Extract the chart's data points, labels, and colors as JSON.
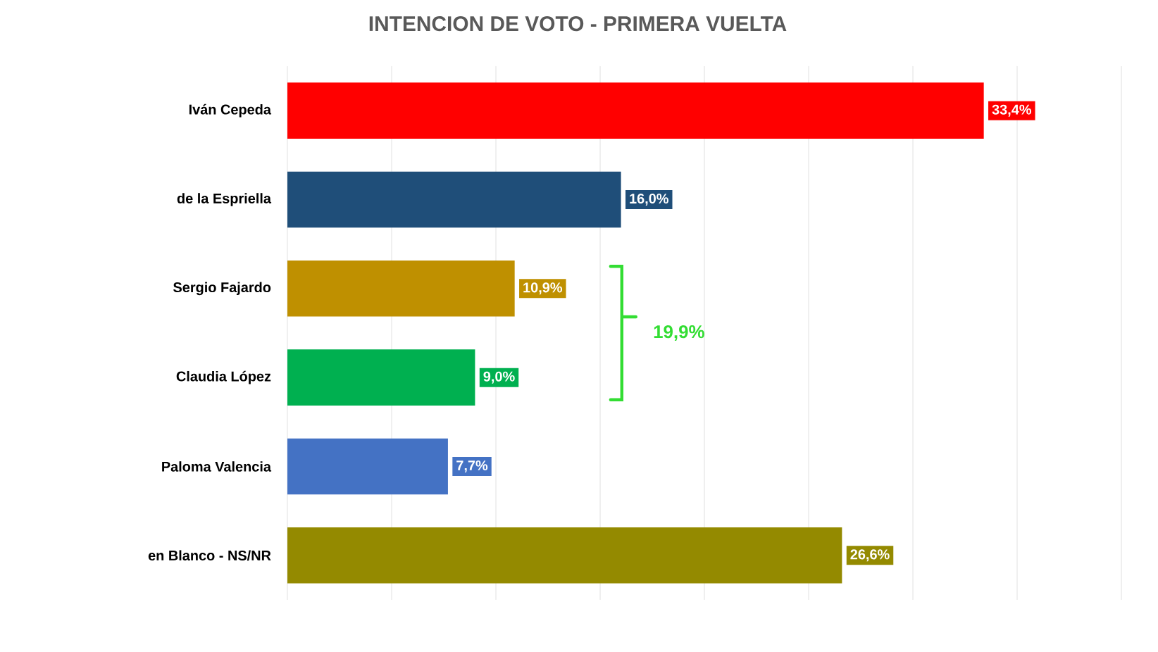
{
  "chart_data": {
    "type": "bar",
    "orientation": "horizontal",
    "title": "INTENCION DE VOTO - PRIMERA VUELTA",
    "categories": [
      "Iván Cepeda",
      "de la Espriella",
      "Sergio Fajardo",
      "Claudia López",
      "Paloma Valencia",
      "en Blanco - NS/NR"
    ],
    "values": [
      33.4,
      16.0,
      10.9,
      9.0,
      7.7,
      26.6
    ],
    "colors": [
      "#ff0000",
      "#1f4e79",
      "#bf9000",
      "#00b050",
      "#4472c4",
      "#948a00"
    ],
    "value_labels": [
      "33,4%",
      "16,0%",
      "10,9%",
      "9,0%",
      "7,7%",
      "26,6%"
    ],
    "xlim": [
      0,
      40
    ],
    "xticks": [
      {
        "value": 0,
        "label": null
      },
      {
        "value": 5,
        "label": null
      },
      {
        "value": 10,
        "label": null
      },
      {
        "value": 15,
        "label": null
      },
      {
        "value": 20,
        "label": null
      },
      {
        "value": 25,
        "label": null
      },
      {
        "value": 30,
        "label": null
      },
      {
        "value": 35,
        "label": null
      },
      {
        "value": 40,
        "label": null
      }
    ],
    "tick_labels": "y",
    "grid": "x",
    "annotations": [
      "19,9%"
    ]
  }
}
